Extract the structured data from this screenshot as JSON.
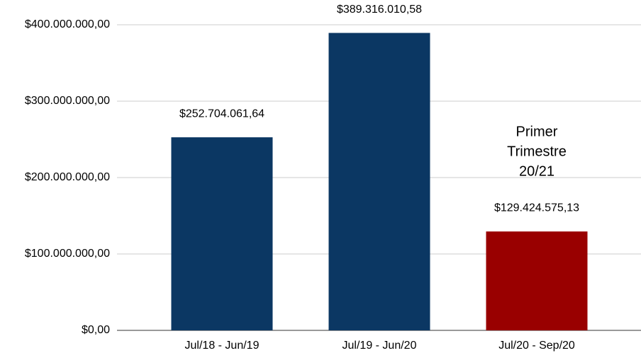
{
  "chart_data": {
    "type": "bar",
    "categories": [
      "Jul/18 - Jun/19",
      "Jul/19 - Jun/20",
      "Jul/20 - Sep/20"
    ],
    "values": [
      252704061.64,
      389316010.58,
      129424575.13
    ],
    "value_labels": [
      "$252.704.061,64",
      "$389.316.010,58",
      "$129.424.575,13"
    ],
    "colors": [
      "#0b3763",
      "#0b3763",
      "#990000"
    ],
    "ylim": [
      0,
      430000000
    ],
    "yticks": [
      {
        "value": 0,
        "label": "$0,00"
      },
      {
        "value": 100000000,
        "label": "$100.000.000,00"
      },
      {
        "value": 200000000,
        "label": "$200.000.000,00"
      },
      {
        "value": 300000000,
        "label": "$300.000.000,00"
      },
      {
        "value": 400000000,
        "label": "$400.000.000,00"
      }
    ],
    "grid": true,
    "annotation": {
      "lines": [
        "Primer",
        "Trimestre",
        "20/21"
      ],
      "color": "#990000",
      "category": 2
    }
  }
}
